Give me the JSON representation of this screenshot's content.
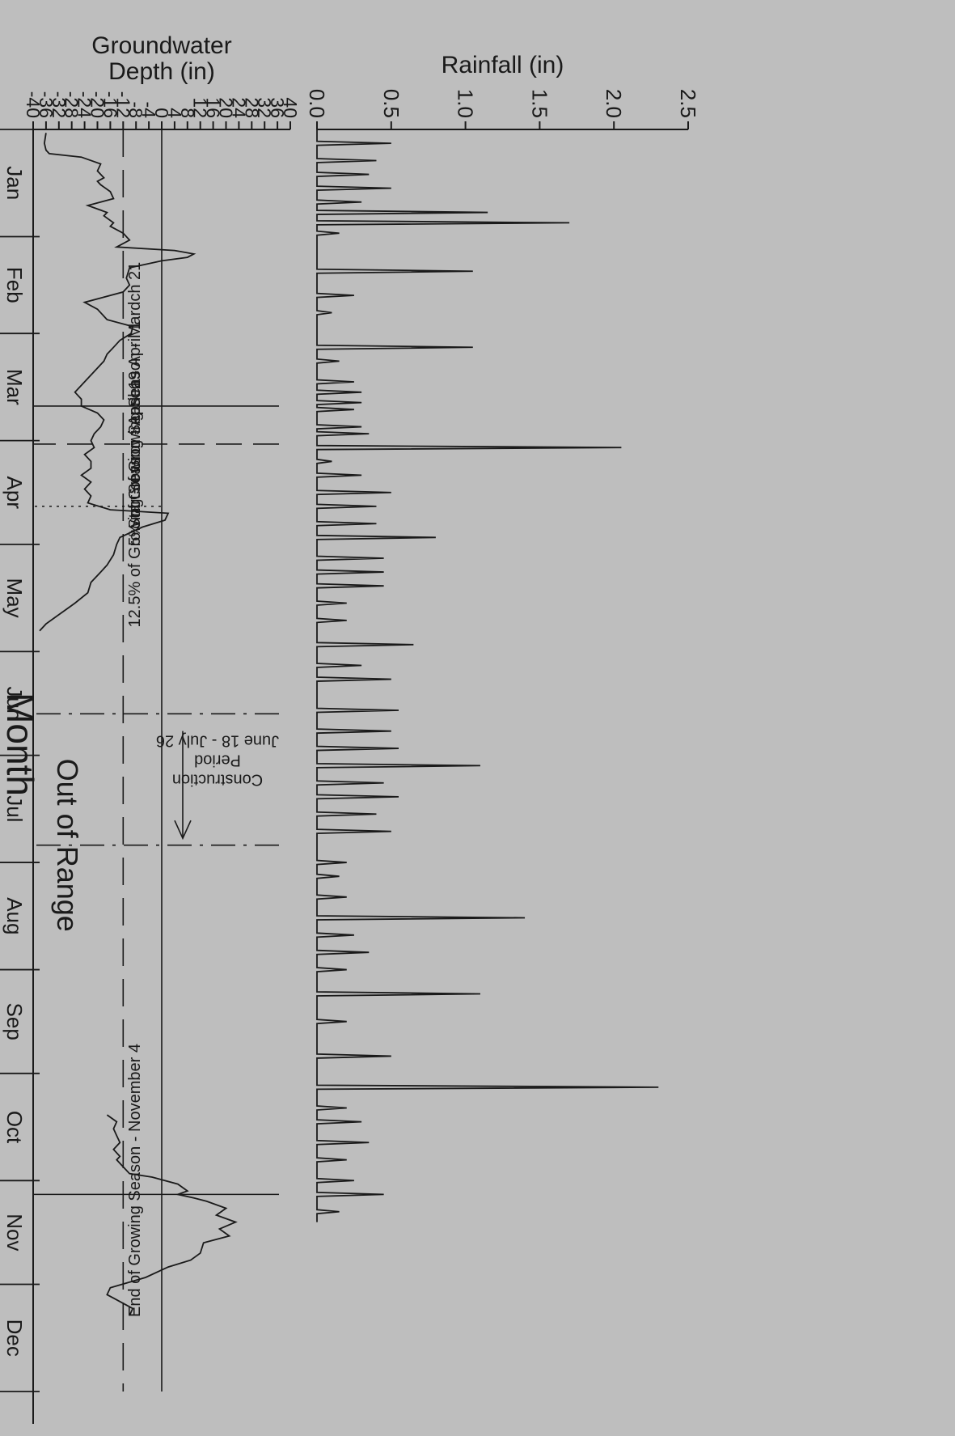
{
  "chart_data": {
    "type": "line",
    "orientation": "rotated-90-clockwise",
    "xlabel": "Month",
    "months": [
      "Jan",
      "Feb",
      "Mar",
      "Apr",
      "May",
      "Jun",
      "Jul",
      "Aug",
      "Sep",
      "Oct",
      "Nov",
      "Dec"
    ],
    "rainfall": {
      "ylabel": "Rainfall (in)",
      "ylim": [
        0,
        2.5
      ],
      "yticks": [
        "0.0",
        "0.5",
        "1.0",
        "1.5",
        "2.0",
        "2.5"
      ],
      "events": [
        {
          "day": 4,
          "value": 0.5
        },
        {
          "day": 9,
          "value": 0.4
        },
        {
          "day": 13,
          "value": 0.35
        },
        {
          "day": 17,
          "value": 0.5
        },
        {
          "day": 21,
          "value": 0.3
        },
        {
          "day": 24,
          "value": 1.15
        },
        {
          "day": 27,
          "value": 1.7
        },
        {
          "day": 30,
          "value": 0.15
        },
        {
          "day": 41,
          "value": 1.05
        },
        {
          "day": 48,
          "value": 0.25
        },
        {
          "day": 53,
          "value": 0.1
        },
        {
          "day": 63,
          "value": 1.05
        },
        {
          "day": 67,
          "value": 0.15
        },
        {
          "day": 73,
          "value": 0.25
        },
        {
          "day": 76,
          "value": 0.3
        },
        {
          "day": 79,
          "value": 0.3
        },
        {
          "day": 81,
          "value": 0.25
        },
        {
          "day": 86,
          "value": 0.3
        },
        {
          "day": 88,
          "value": 0.35
        },
        {
          "day": 92,
          "value": 2.05
        },
        {
          "day": 96,
          "value": 0.1
        },
        {
          "day": 100,
          "value": 0.3
        },
        {
          "day": 105,
          "value": 0.5
        },
        {
          "day": 109,
          "value": 0.4
        },
        {
          "day": 114,
          "value": 0.4
        },
        {
          "day": 118,
          "value": 0.8
        },
        {
          "day": 124,
          "value": 0.45
        },
        {
          "day": 128,
          "value": 0.45
        },
        {
          "day": 132,
          "value": 0.45
        },
        {
          "day": 137,
          "value": 0.2
        },
        {
          "day": 142,
          "value": 0.2
        },
        {
          "day": 149,
          "value": 0.65
        },
        {
          "day": 155,
          "value": 0.3
        },
        {
          "day": 159,
          "value": 0.5
        },
        {
          "day": 168,
          "value": 0.55
        },
        {
          "day": 174,
          "value": 0.5
        },
        {
          "day": 179,
          "value": 0.55
        },
        {
          "day": 184,
          "value": 1.1
        },
        {
          "day": 189,
          "value": 0.45
        },
        {
          "day": 193,
          "value": 0.55
        },
        {
          "day": 198,
          "value": 0.4
        },
        {
          "day": 203,
          "value": 0.5
        },
        {
          "day": 212,
          "value": 0.2
        },
        {
          "day": 216,
          "value": 0.15
        },
        {
          "day": 222,
          "value": 0.2
        },
        {
          "day": 228,
          "value": 1.4
        },
        {
          "day": 233,
          "value": 0.25
        },
        {
          "day": 238,
          "value": 0.35
        },
        {
          "day": 243,
          "value": 0.2
        },
        {
          "day": 250,
          "value": 1.1
        },
        {
          "day": 258,
          "value": 0.2
        },
        {
          "day": 268,
          "value": 0.5
        },
        {
          "day": 277,
          "value": 2.3
        },
        {
          "day": 283,
          "value": 0.2
        },
        {
          "day": 287,
          "value": 0.3
        },
        {
          "day": 293,
          "value": 0.35
        },
        {
          "day": 298,
          "value": 0.2
        },
        {
          "day": 304,
          "value": 0.25
        },
        {
          "day": 308,
          "value": 0.45
        },
        {
          "day": 313,
          "value": 0.15
        }
      ]
    },
    "groundwater": {
      "ylabel": "Groundwater Depth (in)",
      "ylim": [
        -40,
        40
      ],
      "yticks": [
        "40",
        "36",
        "32",
        "28",
        "24",
        "20",
        "16",
        "12",
        "8",
        "4",
        "0",
        "-4",
        "-8",
        "-12",
        "-16",
        "-20",
        "-24",
        "-28",
        "-32",
        "-36",
        "-40"
      ],
      "reference_lines": [
        0,
        -12
      ],
      "out_of_range_label": "Out of Range",
      "segments": [
        [
          [
            1,
            -36
          ],
          [
            4,
            -36.5
          ],
          [
            6,
            -36
          ],
          [
            7,
            -35
          ],
          [
            8,
            -25
          ],
          [
            10,
            -19
          ],
          [
            12,
            -20
          ],
          [
            14,
            -18
          ],
          [
            15,
            -20
          ],
          [
            16,
            -19
          ],
          [
            18,
            -16
          ],
          [
            20,
            -15
          ],
          [
            22,
            -23
          ],
          [
            24,
            -17
          ],
          [
            25,
            -18
          ],
          [
            27,
            -15
          ],
          [
            28,
            -16
          ],
          [
            30,
            -12
          ],
          [
            32,
            -10
          ],
          [
            34,
            -14
          ],
          [
            35,
            4
          ],
          [
            36,
            10
          ],
          [
            37,
            8
          ],
          [
            38,
            0
          ],
          [
            40,
            -10
          ],
          [
            43,
            -11
          ],
          [
            45,
            -10
          ],
          [
            47,
            -12
          ],
          [
            50,
            -24
          ],
          [
            52,
            -20
          ],
          [
            55,
            -17
          ],
          [
            57,
            -9
          ],
          [
            59,
            -9.5
          ],
          [
            61,
            -13
          ],
          [
            63,
            -15
          ],
          [
            65,
            -17
          ],
          [
            67,
            -18
          ],
          [
            70,
            -21
          ],
          [
            73,
            -24
          ],
          [
            76,
            -27
          ],
          [
            78,
            -25
          ],
          [
            80,
            -25
          ],
          [
            82,
            -20
          ],
          [
            84,
            -18
          ],
          [
            86,
            -19
          ],
          [
            88,
            -21
          ],
          [
            90,
            -22
          ],
          [
            92,
            -21
          ],
          [
            94,
            -24
          ],
          [
            96,
            -22
          ],
          [
            98,
            -22
          ],
          [
            100,
            -25
          ],
          [
            102,
            -22
          ],
          [
            104,
            -24
          ],
          [
            106,
            -22
          ],
          [
            108,
            -23
          ],
          [
            110,
            -16
          ],
          [
            111,
            2
          ],
          [
            113,
            1
          ],
          [
            115,
            -6
          ],
          [
            118,
            -13
          ],
          [
            120,
            -14
          ],
          [
            123,
            -15
          ],
          [
            126,
            -17
          ],
          [
            128,
            -19
          ],
          [
            131,
            -22
          ],
          [
            134,
            -23
          ],
          [
            137,
            -27
          ],
          [
            139,
            -30
          ],
          [
            141,
            -33
          ],
          [
            143,
            -36
          ],
          [
            145,
            -38
          ]
        ],
        [
          [
            285,
            -17
          ],
          [
            287,
            -14
          ],
          [
            289,
            -15
          ],
          [
            291,
            -14
          ],
          [
            293,
            -13
          ],
          [
            295,
            -15
          ],
          [
            297,
            -13
          ],
          [
            298,
            -14
          ],
          [
            300,
            -12
          ],
          [
            302,
            -10
          ],
          [
            303,
            -3
          ],
          [
            305,
            5
          ],
          [
            307,
            8
          ],
          [
            308,
            5
          ],
          [
            309,
            10
          ],
          [
            310,
            14
          ],
          [
            312,
            20
          ],
          [
            314,
            17
          ],
          [
            316,
            23
          ],
          [
            318,
            18
          ],
          [
            320,
            21
          ],
          [
            322,
            13
          ],
          [
            325,
            12
          ],
          [
            327,
            9
          ],
          [
            329,
            2
          ],
          [
            332,
            -5
          ],
          [
            335,
            -16
          ],
          [
            337,
            -17
          ],
          [
            338,
            -15
          ],
          [
            340,
            -11
          ],
          [
            341,
            -9
          ],
          [
            343,
            -10
          ]
        ]
      ],
      "annotations": {
        "start_label": "Start of Growing Season - Mardch 21",
        "five_label": "5% of Growing Season - April 1",
        "twelve_label": "12.5% of Growing Season - April 19",
        "end_label": "End of Growing Season - November 4",
        "construction_line1": "Construction",
        "construction_line2": "Period",
        "construction_line3": "June 18 - July 26",
        "start_day": 80,
        "five_day": 91,
        "twelve_day": 109,
        "end_day": 308,
        "construction_start_day": 169,
        "construction_end_day": 207
      }
    }
  }
}
